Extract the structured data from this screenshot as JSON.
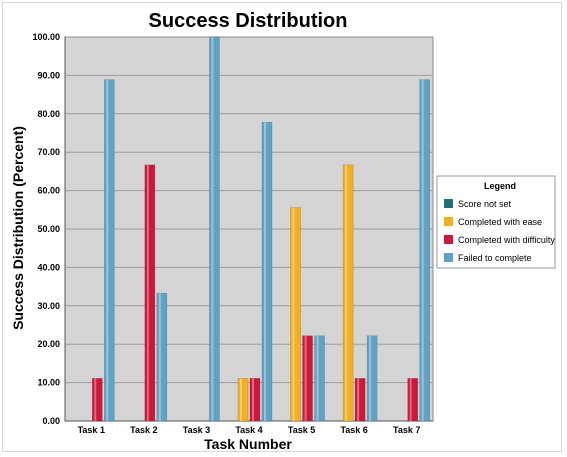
{
  "chart_data": {
    "type": "bar",
    "title": "Success Distribution",
    "xlabel": "Task Number",
    "ylabel": "Success Distribution (Percent)",
    "ylim": [
      0,
      100
    ],
    "yticks": [
      "0.00",
      "10.00",
      "20.00",
      "30.00",
      "40.00",
      "50.00",
      "60.00",
      "70.00",
      "80.00",
      "90.00",
      "100.00"
    ],
    "categories": [
      "Task 1",
      "Task 2",
      "Task 3",
      "Task 4",
      "Task 5",
      "Task 6",
      "Task 7"
    ],
    "legend_title": "Legend",
    "legend_position": "right",
    "grid": true,
    "series": [
      {
        "name": "Score not set",
        "color": "#1f6f78",
        "values": [
          0,
          0,
          0,
          0,
          0,
          0,
          0
        ]
      },
      {
        "name": "Completed with ease",
        "color": "#f2b01e",
        "values": [
          0,
          0,
          0,
          11.1,
          55.6,
          66.7,
          0
        ]
      },
      {
        "name": "Completed with difficulty",
        "color": "#d0173b",
        "values": [
          11.1,
          66.7,
          0,
          11.1,
          22.2,
          11.1,
          11.1
        ]
      },
      {
        "name": "Failed to complete",
        "color": "#5fa3c4",
        "values": [
          88.9,
          33.3,
          100,
          77.8,
          22.2,
          22.2,
          88.9
        ]
      }
    ]
  }
}
